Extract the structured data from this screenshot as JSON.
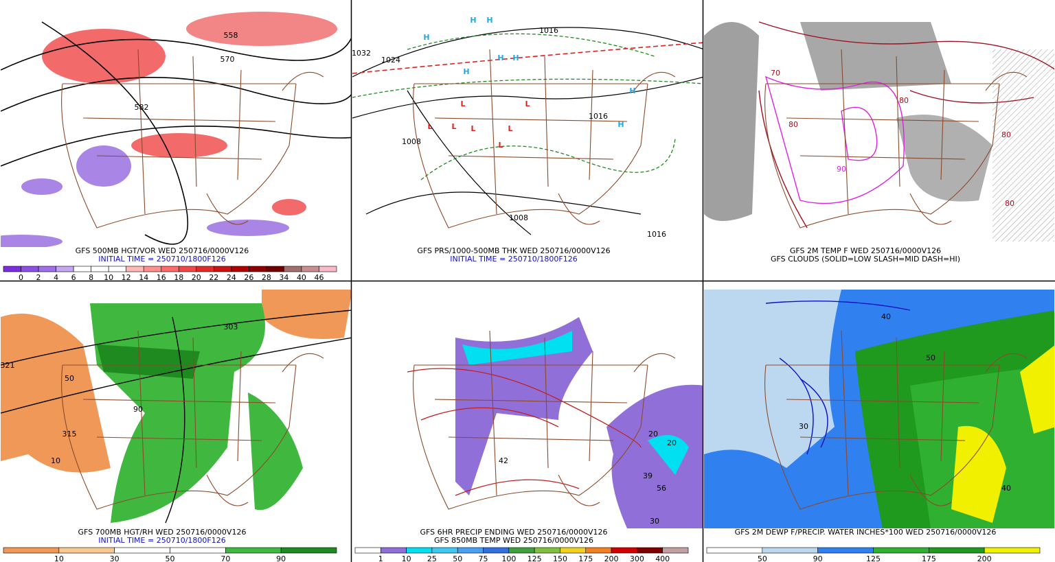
{
  "panels": [
    {
      "caption": [
        "GFS 500MB HGT/VOR WED 250716/0000V126",
        "INITIAL TIME = 250710/1800F126"
      ],
      "caption_colors": [
        "#000000",
        "#1010c0"
      ],
      "map_labels": [
        "558",
        "570",
        "582"
      ],
      "colorbar": {
        "labels": [
          0,
          2,
          4,
          6,
          8,
          10,
          12,
          14,
          16,
          18,
          20,
          22,
          24,
          26,
          28,
          34,
          40,
          46
        ],
        "colors": [
          "#7a2ee0",
          "#8e4fe6",
          "#a070ea",
          "#c4a6f2",
          "#ffffff",
          "#ffffff",
          "#ffffff",
          "#ffb8b8",
          "#ff9090",
          "#ff6a6a",
          "#f04848",
          "#e02c2c",
          "#c81414",
          "#b00000",
          "#900000",
          "#700000",
          "#a07070",
          "#c89090",
          "#f8b8c8"
        ]
      }
    },
    {
      "caption": [
        "GFS PRS/1000-500MB THK WED 250716/0000V126",
        "INITIAL TIME = 250710/1800F126"
      ],
      "caption_colors": [
        "#000000",
        "#1010c0"
      ],
      "map_labels": [
        "H",
        "H",
        "H",
        "H",
        "H",
        "H",
        "H",
        "H",
        "L",
        "L",
        "L",
        "L",
        "L",
        "L",
        "L",
        "1032",
        "1024",
        "1016",
        "1016",
        "1008",
        "1008",
        "1016"
      ]
    },
    {
      "caption": [
        "GFS 2M TEMP F WED 250716/0000V126",
        "GFS CLOUDS (SOLID=LOW SLASH=MID DASH=HI)"
      ],
      "caption_colors": [
        "#000000",
        "#000000"
      ],
      "map_labels": [
        "70",
        "80",
        "80",
        "80",
        "90",
        "80"
      ]
    },
    {
      "caption": [
        "GFS 700MB HGT/RH WED 250716/0000V126",
        "INITIAL TIME = 250710/1800F126"
      ],
      "caption_colors": [
        "#000000",
        "#1010c0"
      ],
      "map_labels": [
        "321",
        "315",
        "50",
        "90",
        "10",
        "303"
      ],
      "colorbar": {
        "labels": [
          10,
          30,
          50,
          70,
          90
        ],
        "colors": [
          "#f09858",
          "#f8c890",
          "#ffffff",
          "#ffffff",
          "#40b840",
          "#1f8a1f"
        ]
      }
    },
    {
      "caption": [
        "GFS 6HR PRECIP ENDING WED 250716/0000V126",
        "GFS 850MB TEMP WED 250716/0000V126"
      ],
      "caption_colors": [
        "#000000",
        "#000000"
      ],
      "map_labels": [
        "20",
        "20",
        "39",
        "56",
        "30",
        "42"
      ],
      "colorbar": {
        "labels": [
          1,
          10,
          25,
          50,
          75,
          100,
          125,
          150,
          175,
          200,
          300,
          400
        ],
        "colors": [
          "#ffffff",
          "#9070d8",
          "#00e0f0",
          "#40c8f0",
          "#4aa0f0",
          "#3070e0",
          "#40a040",
          "#80c040",
          "#f0d020",
          "#f08020",
          "#d00000",
          "#800000",
          "#c0a0a0"
        ]
      }
    },
    {
      "caption": [
        "GFS 2M DEWP F/PRECIP. WATER INCHES*100 WED 250716/0000V126"
      ],
      "caption_colors": [
        "#000000"
      ],
      "map_labels": [
        "30",
        "50",
        "40",
        "40"
      ],
      "colorbar": {
        "labels": [
          50,
          90,
          125,
          175,
          200
        ],
        "colors": [
          "#ffffff",
          "#bcd8f0",
          "#3080f0",
          "#30b030",
          "#1f9a1f",
          "#f0f000"
        ]
      }
    }
  ]
}
